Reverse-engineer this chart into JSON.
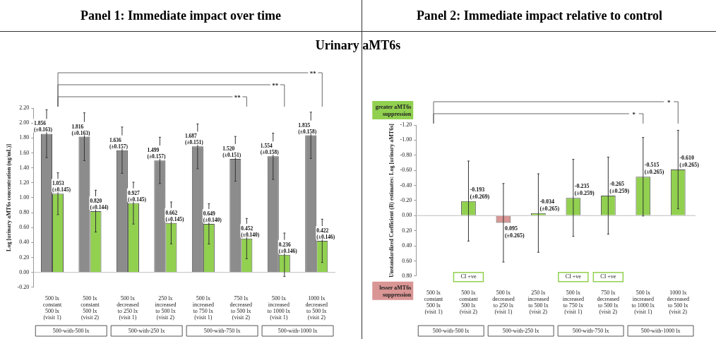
{
  "chart_data": [
    {
      "type": "bar",
      "title": "Panel 1: Immediate impact over time",
      "subtitle": "Urinary aMT6s",
      "ylabel": "Log [urinary aMT6s concentration (ng/mL)]",
      "categories": [
        "500 lx\nconstant\n500 lx\n(visit 1)",
        "500 lx\nconstant\n500 lx\n(visit 2)",
        "500 lx\ndecreased\nto 250 lx\n(visit 1)",
        "250 lx\nincreased\nto 500 lx\n(visit 2)",
        "500 lx\nincreased\nto 750 lx\n(visit 1)",
        "750 lx\ndecreased\nto 500 lx\n(visit 2)",
        "500 lx\nincreased\nto 1000 lx\n(visit 1)",
        "1000 lx\ndecreased\nto 500 lx\n(visit 2)"
      ],
      "series": [
        {
          "color": "#8c8c8c",
          "values": [
            1.856,
            1.816,
            1.636,
            1.499,
            1.687,
            1.52,
            1.554,
            1.835
          ],
          "errors": [
            0.32,
            0.32,
            0.31,
            0.31,
            0.3,
            0.3,
            0.31,
            0.31
          ],
          "value_labels": [
            "1.856\n(±0.163)",
            "1.816\n(±0.163)",
            "1.636\n(±0.157)",
            "1.499\n(±0.157)",
            "1.687\n(±0.151)",
            "1.520\n(±0.151)",
            "1.554\n(±0.158)",
            "1.835\n(±0.158)"
          ]
        },
        {
          "color": "#92d050",
          "values": [
            1.053,
            0.82,
            0.927,
            0.662,
            0.649,
            0.452,
            0.236,
            0.422
          ],
          "errors": [
            0.28,
            0.28,
            0.28,
            0.28,
            0.27,
            0.27,
            0.29,
            0.29
          ],
          "value_labels": [
            "1.053\n(±0.145)",
            "0.820\n(±0.144)",
            "0.927\n(±0.145)",
            "0.662\n(±0.145)",
            "0.649\n(±0.140)",
            "0.452\n(±0.140)",
            "0.236\n(±0.146)",
            "0.422\n(±0.146)"
          ]
        }
      ],
      "ylim": [
        -0.2,
        2.2
      ],
      "yticks": [
        {
          "value": -0.2,
          "label": "-0.20"
        },
        {
          "value": 0,
          "label": "0.00"
        },
        {
          "value": 0.2,
          "label": "0.20"
        },
        {
          "value": 0.4,
          "label": "0.40"
        },
        {
          "value": 0.6,
          "label": "0.60"
        },
        {
          "value": 0.8,
          "label": "0.80"
        },
        {
          "value": 1,
          "label": "1.00"
        },
        {
          "value": 1.2,
          "label": "1.20"
        },
        {
          "value": 1.4,
          "label": "1.40"
        },
        {
          "value": 1.6,
          "label": "1.60"
        },
        {
          "value": 1.8,
          "label": "1.80"
        },
        {
          "value": 2,
          "label": "2.00"
        },
        {
          "value": 2.2,
          "label": "2.20"
        }
      ],
      "ref_lines": [
        {
          "axis": "y",
          "value": 0,
          "color": "#bfbfbf"
        }
      ],
      "annotations": [
        "**",
        "**",
        "**",
        "500-with-500 lx",
        "500-with-250 lx",
        "500-with-750 lx",
        "500-with-1000 lx"
      ]
    },
    {
      "type": "bar",
      "title": "Panel 2: Immediate impact relative to control",
      "ylabel": "Unstandardized Coefficient (B) estimates: Log [urinary aMT6s]",
      "categories": [
        "500 lx\nconstant\n500 lx\n(visit 1)",
        "500 lx\nconstant\n500 lx\n(visit 2)",
        "500 lx\ndecreased\nto 250 lx\n(visit 1)",
        "250 lx\nincreased\nto 500 lx\n(visit 2)",
        "500 lx\nincreased\nto 750 lx\n(visit 1)",
        "750 lx\ndecreased\nto 500 lx\n(visit 2)",
        "500 lx\nincreased\nto 1000 lx\n(visit 1)",
        "1000 lx\ndecreased\nto 500 lx\n(visit 2)"
      ],
      "values": [
        0,
        -0.193,
        0.095,
        -0.034,
        -0.235,
        -0.265,
        -0.515,
        -0.61
      ],
      "colors": [
        "#92d050",
        "#92d050",
        "#d99694",
        "#92d050",
        "#92d050",
        "#92d050",
        "#92d050",
        "#92d050"
      ],
      "errors": [
        null,
        0.53,
        0.52,
        0.52,
        0.51,
        0.51,
        0.52,
        0.52
      ],
      "value_labels": [
        null,
        "-0.193\n(±0.269)",
        "0.095\n(±0.265)",
        "-0.034\n(±0.265)",
        "-0.235\n(±0.259)",
        "-0.265\n(±0.259)",
        "-0.515\n(±0.265)",
        "-0.610\n(±0.265)"
      ],
      "ylim": [
        0.8,
        -1.2
      ],
      "yticks": [
        {
          "value": 0.8,
          "label": "0.80"
        },
        {
          "value": 0.6,
          "label": "0.60"
        },
        {
          "value": 0.4,
          "label": "0.40"
        },
        {
          "value": 0.2,
          "label": "0.20"
        },
        {
          "value": 0,
          "label": "0.00"
        },
        {
          "value": -0.2,
          "label": "-0.20"
        },
        {
          "value": -0.4,
          "label": "-0.40"
        },
        {
          "value": -0.6,
          "label": "-0.60"
        },
        {
          "value": -0.8,
          "label": "-0.80"
        },
        {
          "value": -1,
          "label": "-1.00"
        },
        {
          "value": -1.2,
          "label": "-1.20"
        }
      ],
      "ref_lines": [
        {
          "axis": "y",
          "value": 0,
          "color": "#bfbfbf"
        }
      ],
      "annotations": [
        "*",
        "*",
        {
          "text": "CI +ve",
          "x": "500 lx\nconstant\n500 lx\n(visit 2)"
        },
        {
          "text": "CI +ve",
          "x": "500 lx\nincreased\nto 750 lx\n(visit 1)"
        },
        {
          "text": "CI +ve",
          "x": "750 lx\ndecreased\nto 500 lx\n(visit 2)"
        },
        "greater aMT6s suppression",
        "lesser aMT6s suppression",
        "500-with-500 lx",
        "500-with-250 lx",
        "500-with-750 lx",
        "500-with-1000 lx"
      ]
    }
  ]
}
